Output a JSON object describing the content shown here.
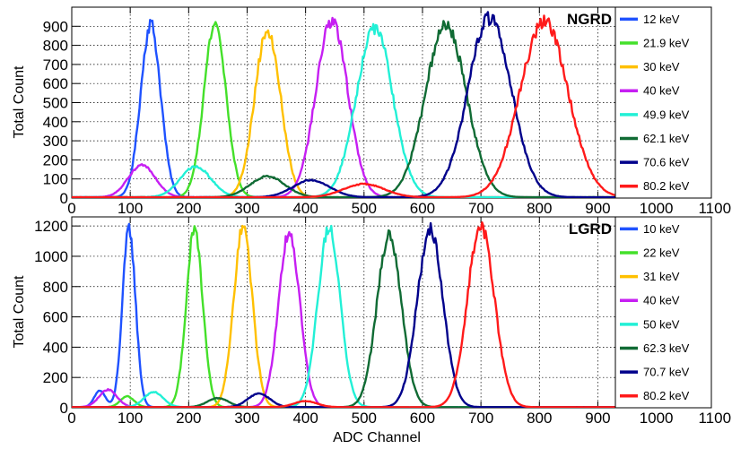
{
  "chart_data": [
    {
      "type": "line",
      "tag": "NGRD",
      "xlabel": "",
      "ylabel": "Total Count",
      "xlim": [
        0,
        1100
      ],
      "ylim": [
        0,
        1000
      ],
      "x_ticks": [
        0,
        100,
        200,
        300,
        400,
        500,
        600,
        700,
        800,
        900,
        1000,
        1100
      ],
      "y_ticks": [
        0,
        100,
        200,
        300,
        400,
        500,
        600,
        700,
        800,
        900
      ],
      "grid": true,
      "legend_position": "right",
      "series": [
        {
          "name": "12 keV",
          "color": "#1f52ff",
          "peak_x": 135,
          "peak_y": 910,
          "sigma": 17,
          "escape_x": null,
          "escape_y": 0
        },
        {
          "name": "21.9 keV",
          "color": "#44e02a",
          "peak_x": 245,
          "peak_y": 910,
          "sigma": 19,
          "escape_x": null,
          "escape_y": 0
        },
        {
          "name": "30 keV",
          "color": "#ffc000",
          "peak_x": 335,
          "peak_y": 880,
          "sigma": 22,
          "escape_x": null,
          "escape_y": 0
        },
        {
          "name": "40 keV",
          "color": "#c61ff2",
          "peak_x": 445,
          "peak_y": 930,
          "sigma": 27,
          "escape_x": 120,
          "escape_y": 170
        },
        {
          "name": "49.9 keV",
          "color": "#22f0d6",
          "peak_x": 518,
          "peak_y": 890,
          "sigma": 31,
          "escape_x": 212,
          "escape_y": 160
        },
        {
          "name": "62.1 keV",
          "color": "#106b34",
          "peak_x": 640,
          "peak_y": 900,
          "sigma": 35,
          "escape_x": 335,
          "escape_y": 110
        },
        {
          "name": "70.6 keV",
          "color": "#00008b",
          "peak_x": 715,
          "peak_y": 940,
          "sigma": 37,
          "escape_x": 410,
          "escape_y": 90
        },
        {
          "name": "80.2 keV",
          "color": "#ff1a1a",
          "peak_x": 808,
          "peak_y": 920,
          "sigma": 41,
          "escape_x": 500,
          "escape_y": 70
        }
      ]
    },
    {
      "type": "line",
      "tag": "LGRD",
      "xlabel": "ADC Channel",
      "ylabel": "Total Count",
      "xlim": [
        0,
        1100
      ],
      "ylim": [
        0,
        1260
      ],
      "x_ticks": [
        0,
        100,
        200,
        300,
        400,
        500,
        600,
        700,
        800,
        900,
        1000,
        1100
      ],
      "y_ticks": [
        0,
        200,
        400,
        600,
        800,
        1000,
        1200
      ],
      "grid": true,
      "legend_position": "right",
      "series": [
        {
          "name": "10 keV",
          "color": "#1f52ff",
          "peak_x": 98,
          "peak_y": 1180,
          "sigma": 11,
          "escape_x": 48,
          "escape_y": 110
        },
        {
          "name": "22 keV",
          "color": "#44e02a",
          "peak_x": 210,
          "peak_y": 1170,
          "sigma": 14,
          "escape_x": 95,
          "escape_y": 70
        },
        {
          "name": "31 keV",
          "color": "#ffc000",
          "peak_x": 293,
          "peak_y": 1190,
          "sigma": 16,
          "escape_x": null,
          "escape_y": 0
        },
        {
          "name": "40 keV",
          "color": "#c61ff2",
          "peak_x": 372,
          "peak_y": 1150,
          "sigma": 18,
          "escape_x": 62,
          "escape_y": 115
        },
        {
          "name": "50 keV",
          "color": "#22f0d6",
          "peak_x": 440,
          "peak_y": 1180,
          "sigma": 19,
          "escape_x": 140,
          "escape_y": 100
        },
        {
          "name": "62.3 keV",
          "color": "#106b34",
          "peak_x": 543,
          "peak_y": 1130,
          "sigma": 21,
          "escape_x": 250,
          "escape_y": 60
        },
        {
          "name": "70.7 keV",
          "color": "#00008b",
          "peak_x": 613,
          "peak_y": 1170,
          "sigma": 22,
          "escape_x": 320,
          "escape_y": 90
        },
        {
          "name": "80.2 keV",
          "color": "#ff1a1a",
          "peak_x": 700,
          "peak_y": 1200,
          "sigma": 23,
          "escape_x": 400,
          "escape_y": 40
        }
      ]
    }
  ]
}
